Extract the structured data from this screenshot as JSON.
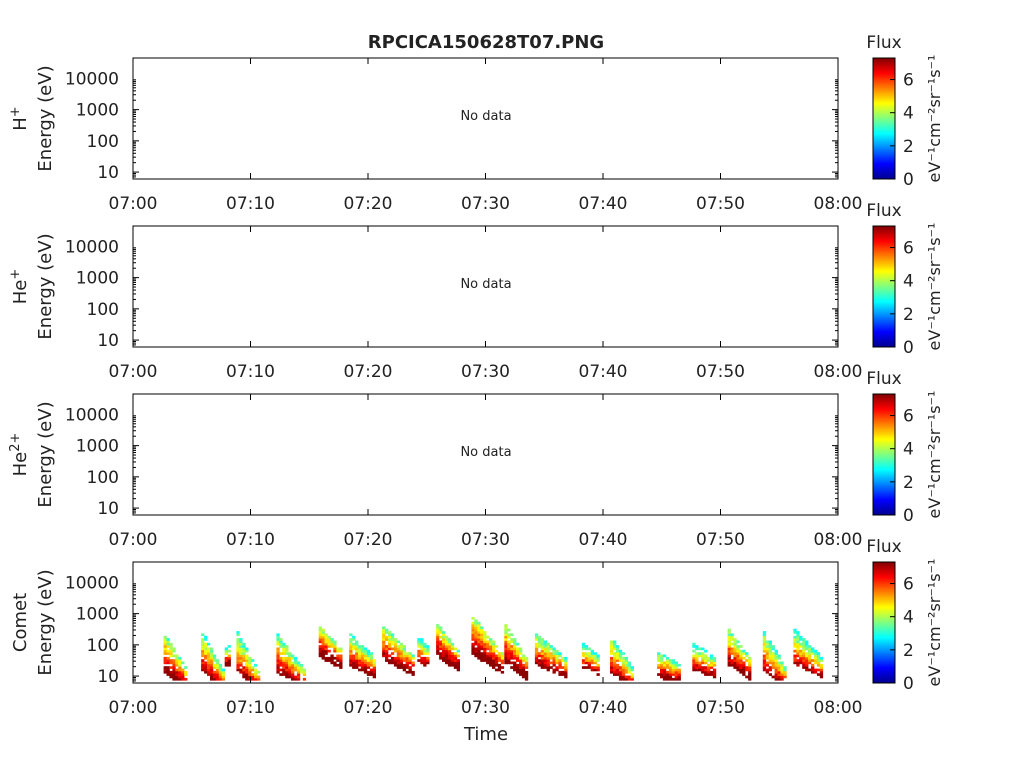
{
  "title": "RPCICA150628T07.PNG",
  "xlabel": "Time",
  "no_data_text": "No data",
  "colorbar": {
    "label": "Flux",
    "units": "eV⁻¹cm⁻²sr⁻¹s⁻¹",
    "ticks": [
      "0",
      "2",
      "4",
      "6"
    ],
    "range": [
      0,
      7.3
    ]
  },
  "chart_data": [
    {
      "type": "heatmap",
      "species": "H",
      "species_sup": "+",
      "ylabel": "Energy (eV)",
      "yscale": "log",
      "ylim": [
        6,
        45000
      ],
      "yticks": [
        "10",
        "100",
        "1000",
        "10000"
      ],
      "xticks": [
        "07:00",
        "07:10",
        "07:20",
        "07:30",
        "07:40",
        "07:50",
        "08:00"
      ],
      "xlim": [
        "07:00",
        "08:00"
      ],
      "has_data": false,
      "bursts": []
    },
    {
      "type": "heatmap",
      "species": "He",
      "species_sup": "+",
      "ylabel": "Energy (eV)",
      "yscale": "log",
      "ylim": [
        6,
        45000
      ],
      "yticks": [
        "10",
        "100",
        "1000",
        "10000"
      ],
      "xticks": [
        "07:00",
        "07:10",
        "07:20",
        "07:30",
        "07:40",
        "07:50",
        "08:00"
      ],
      "xlim": [
        "07:00",
        "08:00"
      ],
      "has_data": false,
      "bursts": []
    },
    {
      "type": "heatmap",
      "species": "He",
      "species_sup": "2+",
      "ylabel": "Energy (eV)",
      "yscale": "log",
      "ylim": [
        6,
        45000
      ],
      "yticks": [
        "10",
        "100",
        "1000",
        "10000"
      ],
      "xticks": [
        "07:00",
        "07:10",
        "07:20",
        "07:30",
        "07:40",
        "07:50",
        "08:00"
      ],
      "xlim": [
        "07:00",
        "08:00"
      ],
      "has_data": false,
      "bursts": []
    },
    {
      "type": "heatmap",
      "species": "Comet",
      "species_sup": "",
      "ylabel": "Energy (eV)",
      "yscale": "log",
      "ylim": [
        6,
        45000
      ],
      "yticks": [
        "10",
        "100",
        "1000",
        "10000"
      ],
      "xticks": [
        "07:00",
        "07:10",
        "07:20",
        "07:30",
        "07:40",
        "07:50",
        "08:00"
      ],
      "xlim": [
        "07:00",
        "08:00"
      ],
      "has_data": true,
      "bursts": [
        {
          "t0": 2.6,
          "t1": 4.6,
          "emax": 220,
          "emin": 6,
          "peak": 6.8
        },
        {
          "t0": 5.8,
          "t1": 7.6,
          "emax": 280,
          "emin": 6,
          "peak": 6.5
        },
        {
          "t0": 7.8,
          "t1": 8.2,
          "emax": 80,
          "emin": 40,
          "peak": 6.2
        },
        {
          "t0": 8.8,
          "t1": 10.6,
          "emax": 260,
          "emin": 6,
          "peak": 6.3
        },
        {
          "t0": 12.2,
          "t1": 14.6,
          "emax": 220,
          "emin": 6,
          "peak": 6.6
        },
        {
          "t0": 15.8,
          "t1": 17.6,
          "emax": 420,
          "emin": 30,
          "peak": 7.0
        },
        {
          "t0": 18.4,
          "t1": 20.6,
          "emax": 220,
          "emin": 15,
          "peak": 6.4
        },
        {
          "t0": 21.2,
          "t1": 23.8,
          "emax": 420,
          "emin": 18,
          "peak": 6.8
        },
        {
          "t0": 24.2,
          "t1": 25.2,
          "emax": 200,
          "emin": 30,
          "peak": 6.1
        },
        {
          "t0": 25.8,
          "t1": 27.6,
          "emax": 480,
          "emin": 25,
          "peak": 7.0
        },
        {
          "t0": 28.8,
          "t1": 31.4,
          "emax": 900,
          "emin": 20,
          "peak": 7.1
        },
        {
          "t0": 31.6,
          "t1": 33.6,
          "emax": 450,
          "emin": 12,
          "peak": 6.9
        },
        {
          "t0": 34.2,
          "t1": 36.8,
          "emax": 250,
          "emin": 15,
          "peak": 6.5
        },
        {
          "t0": 38.2,
          "t1": 39.6,
          "emax": 120,
          "emin": 18,
          "peak": 6.2
        },
        {
          "t0": 40.6,
          "t1": 42.6,
          "emax": 200,
          "emin": 6,
          "peak": 6.4
        },
        {
          "t0": 44.6,
          "t1": 46.4,
          "emax": 60,
          "emin": 10,
          "peak": 6.5
        },
        {
          "t0": 47.6,
          "t1": 49.6,
          "emax": 120,
          "emin": 15,
          "peak": 6.1
        },
        {
          "t0": 50.6,
          "t1": 52.6,
          "emax": 320,
          "emin": 12,
          "peak": 6.7
        },
        {
          "t0": 53.6,
          "t1": 55.6,
          "emax": 300,
          "emin": 6,
          "peak": 6.4
        },
        {
          "t0": 56.2,
          "t1": 58.6,
          "emax": 330,
          "emin": 15,
          "peak": 6.0
        }
      ]
    }
  ]
}
